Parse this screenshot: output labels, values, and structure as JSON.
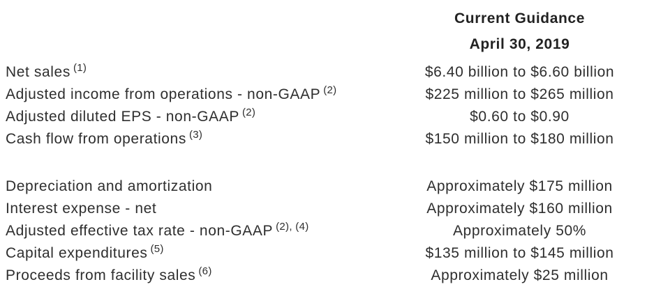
{
  "header": {
    "line1": "Current Guidance",
    "line2": "April 30, 2019"
  },
  "sections": [
    {
      "rows": [
        {
          "label": "Net sales",
          "sup": "(1)",
          "value": "$6.40 billion to $6.60 billion"
        },
        {
          "label": "Adjusted income from operations - non-GAAP",
          "sup": "(2)",
          "value": "$225 million to $265 million"
        },
        {
          "label": "Adjusted diluted EPS - non-GAAP",
          "sup": "(2)",
          "value": "$0.60 to $0.90"
        },
        {
          "label": "Cash flow from operations",
          "sup": "(3)",
          "value": "$150 million to $180 million"
        }
      ]
    },
    {
      "rows": [
        {
          "label": "Depreciation and amortization",
          "sup": "",
          "value": "Approximately $175 million"
        },
        {
          "label": "Interest expense - net",
          "sup": "",
          "value": "Approximately $160 million"
        },
        {
          "label": "Adjusted effective tax rate - non-GAAP",
          "sup": "(2), (4)",
          "value": "Approximately 50%"
        },
        {
          "label": "Capital expenditures",
          "sup": "(5)",
          "value": "$135 million to $145 million"
        },
        {
          "label": "Proceeds from facility sales",
          "sup": "(6)",
          "value": "Approximately $25 million"
        }
      ]
    }
  ],
  "colors": {
    "background": "#ffffff",
    "text": "#2e2e2e",
    "heading": "#222222"
  }
}
